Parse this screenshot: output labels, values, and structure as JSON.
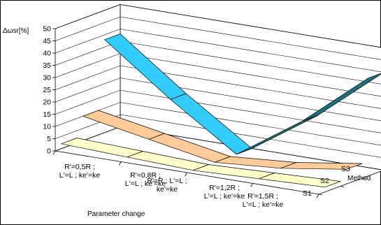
{
  "chart_data": {
    "type": "line",
    "title": "",
    "ylabel": "Δωsr[%]",
    "xlabel": "Parameter change",
    "zlabel": "Method",
    "ylim": [
      0,
      50
    ],
    "yticks": [
      0,
      5,
      10,
      15,
      20,
      25,
      30,
      35,
      40,
      45,
      50
    ],
    "categories": [
      [
        "R'=0,5R ;",
        "L'=L ; ke'=ke"
      ],
      [
        "R'=0,8R ;",
        "L'=L ; ke'=ke"
      ],
      [
        "R'=R ; L'=L ;",
        "ke'=ke"
      ],
      [
        "R'=1,2R ;",
        "L'=L ; ke'=ke"
      ],
      [
        "R'=1,5R ;",
        "L'=L ; ke'=ke"
      ]
    ],
    "series": [
      {
        "name": "S1",
        "values": [
          38,
          18,
          0,
          18,
          40
        ],
        "color": "#33ccff"
      },
      {
        "name": "S2",
        "values": [
          10,
          5,
          0,
          2,
          6
        ],
        "color": "#ffcc99"
      },
      {
        "name": "S3",
        "values": [
          2,
          1,
          0,
          1,
          2
        ],
        "color": "#ffffcc"
      }
    ],
    "grid": true,
    "legend": "none"
  }
}
